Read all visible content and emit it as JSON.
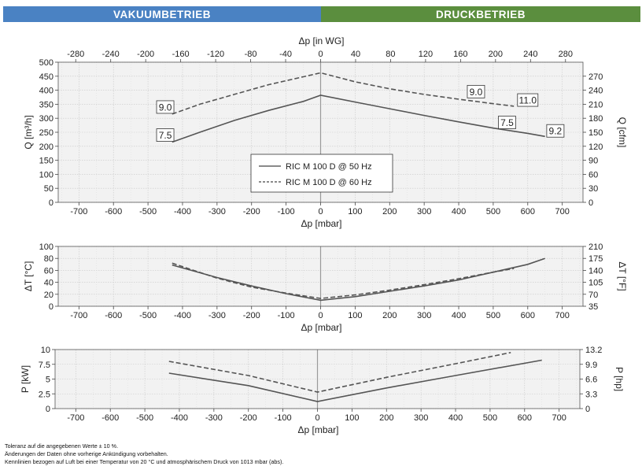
{
  "header": {
    "left_label": "VAKUUMBETRIEB",
    "right_label": "DRUCKBETRIEB",
    "left_color": "#4a82c3",
    "right_color": "#5b8e3e"
  },
  "chart_data": [
    {
      "type": "line",
      "panel": "flow",
      "xlabel": "Δp [mbar]",
      "xlabel_top": "Δp [in WG]",
      "ylabel": "Q [m³/h]",
      "ylabel_right": "Q [cfm]",
      "xlim": [
        -760,
        760
      ],
      "ylim": [
        0,
        500
      ],
      "x_ticks": [
        -700,
        -600,
        -500,
        -400,
        -300,
        -200,
        -100,
        0,
        100,
        200,
        300,
        400,
        500,
        600,
        700
      ],
      "y_ticks": [
        0,
        50,
        100,
        150,
        200,
        250,
        300,
        350,
        400,
        450,
        500
      ],
      "top_ticks": [
        -280,
        -240,
        -200,
        -160,
        -120,
        -80,
        -40,
        0,
        40,
        80,
        120,
        160,
        200,
        240,
        280
      ],
      "right_ticks": [
        0,
        30,
        60,
        90,
        120,
        150,
        180,
        210,
        240,
        270
      ],
      "grid": true,
      "legend_position": "center",
      "series": [
        {
          "name": "RIC M 100 D @ 50 Hz",
          "style": "solid",
          "x": [
            -430,
            -350,
            -250,
            -150,
            -50,
            0,
            100,
            200,
            300,
            400,
            500,
            600,
            650
          ],
          "values": [
            215,
            250,
            292,
            328,
            360,
            382,
            358,
            334,
            310,
            287,
            265,
            246,
            235
          ]
        },
        {
          "name": "RIC M 100 D @ 60 Hz",
          "style": "dashed",
          "x": [
            -430,
            -350,
            -250,
            -150,
            -50,
            0,
            100,
            200,
            300,
            400,
            500,
            560
          ],
          "values": [
            315,
            350,
            385,
            420,
            448,
            462,
            430,
            405,
            385,
            368,
            352,
            343
          ]
        }
      ],
      "annotations": [
        {
          "text": "9.0",
          "x": -450,
          "y": 340
        },
        {
          "text": "7.5",
          "x": -450,
          "y": 240
        },
        {
          "text": "9.0",
          "x": 450,
          "y": 395
        },
        {
          "text": "11.0",
          "x": 600,
          "y": 365
        },
        {
          "text": "7.5",
          "x": 540,
          "y": 285
        },
        {
          "text": "9.2",
          "x": 680,
          "y": 255
        }
      ]
    },
    {
      "type": "line",
      "panel": "temperature",
      "xlabel": "Δp [mbar]",
      "ylabel": "ΔT [°C]",
      "ylabel_right": "ΔT [°F]",
      "xlim": [
        -760,
        760
      ],
      "ylim": [
        0,
        100
      ],
      "x_ticks": [
        -700,
        -600,
        -500,
        -400,
        -300,
        -200,
        -100,
        0,
        100,
        200,
        300,
        400,
        500,
        600,
        700
      ],
      "y_ticks": [
        0,
        20,
        40,
        60,
        80,
        100
      ],
      "right_ticks": [
        35,
        70,
        105,
        140,
        175,
        210
      ],
      "grid": true,
      "series": [
        {
          "name": "RIC M 100 D @ 50 Hz",
          "style": "solid",
          "x": [
            -430,
            -300,
            -200,
            -100,
            0,
            100,
            200,
            300,
            400,
            500,
            600,
            650
          ],
          "values": [
            69,
            48,
            34,
            21,
            10,
            16,
            25,
            34,
            44,
            57,
            70,
            80
          ]
        },
        {
          "name": "RIC M 100 D @ 60 Hz",
          "style": "dashed",
          "x": [
            -430,
            -300,
            -200,
            -100,
            0,
            100,
            200,
            300,
            400,
            500,
            560
          ],
          "values": [
            72,
            47,
            32,
            22,
            13,
            19,
            27,
            36,
            46,
            57,
            63
          ]
        }
      ]
    },
    {
      "type": "line",
      "panel": "power",
      "xlabel": "Δp [mbar]",
      "ylabel": "P [kW]",
      "ylabel_right": "P [hp]",
      "xlim": [
        -760,
        760
      ],
      "ylim": [
        0,
        10
      ],
      "x_ticks": [
        -700,
        -600,
        -500,
        -400,
        -300,
        -200,
        -100,
        0,
        100,
        200,
        300,
        400,
        500,
        600,
        700
      ],
      "y_ticks": [
        0,
        2.5,
        5,
        7.5,
        10
      ],
      "y_tick_labels": [
        "0",
        "2.5",
        "5",
        "7.5",
        "10"
      ],
      "right_ticks": [
        0,
        3.3,
        6.6,
        9.9,
        13.2
      ],
      "grid": true,
      "series": [
        {
          "name": "RIC M 100 D @ 50 Hz",
          "style": "solid",
          "x": [
            -430,
            -200,
            0,
            200,
            400,
            650
          ],
          "values": [
            6.0,
            3.9,
            1.2,
            3.5,
            5.6,
            8.2
          ]
        },
        {
          "name": "RIC M 100 D @ 60 Hz",
          "style": "dashed",
          "x": [
            -430,
            -200,
            0,
            200,
            400,
            560
          ],
          "values": [
            8.0,
            5.6,
            2.8,
            5.3,
            7.6,
            9.5
          ]
        }
      ]
    }
  ],
  "notes": [
    "Toleranz auf die angegebenen Werte ± 10 %.",
    "Änderungen der Daten ohne vorherige Ankündigung vorbehalten.",
    "Kennlinien bezogen auf Luft bei einer Temperatur von 20 °C und atmosphärischem Druck von 1013 mbar (abs)."
  ]
}
